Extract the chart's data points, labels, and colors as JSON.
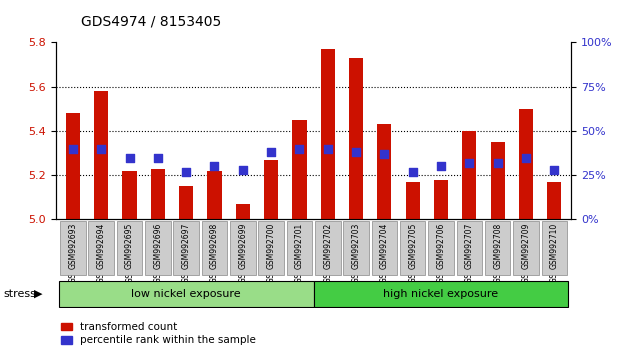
{
  "title": "GDS4974 / 8153405",
  "samples": [
    "GSM992693",
    "GSM992694",
    "GSM992695",
    "GSM992696",
    "GSM992697",
    "GSM992698",
    "GSM992699",
    "GSM992700",
    "GSM992701",
    "GSM992702",
    "GSM992703",
    "GSM992704",
    "GSM992705",
    "GSM992706",
    "GSM992707",
    "GSM992708",
    "GSM992709",
    "GSM992710"
  ],
  "red_values": [
    5.48,
    5.58,
    5.22,
    5.23,
    5.15,
    5.22,
    5.07,
    5.27,
    5.45,
    5.77,
    5.73,
    5.43,
    5.17,
    5.18,
    5.4,
    5.35,
    5.5,
    5.17
  ],
  "blue_values": [
    40,
    40,
    35,
    35,
    27,
    30,
    28,
    38,
    40,
    40,
    38,
    37,
    27,
    30,
    32,
    32,
    35,
    28
  ],
  "ylim_left": [
    5.0,
    5.8
  ],
  "ylim_right": [
    0,
    100
  ],
  "yticks_left": [
    5.0,
    5.2,
    5.4,
    5.6,
    5.8
  ],
  "yticks_right": [
    0,
    25,
    50,
    75,
    100
  ],
  "ytick_labels_right": [
    "0%",
    "25%",
    "50%",
    "75%",
    "100%"
  ],
  "bar_color": "#CC1100",
  "blue_color": "#3333CC",
  "group1_label": "low nickel exposure",
  "group2_label": "high nickel exposure",
  "group1_indices": [
    0,
    9
  ],
  "group2_indices": [
    9,
    18
  ],
  "group1_color": "#99DD88",
  "group2_color": "#44CC44",
  "stress_label": "stress",
  "legend1": "transformed count",
  "legend2": "percentile rank within the sample",
  "background_color": "#FFFFFF",
  "grid_color": "#000000",
  "bar_width": 0.5,
  "blue_marker_size": 5
}
